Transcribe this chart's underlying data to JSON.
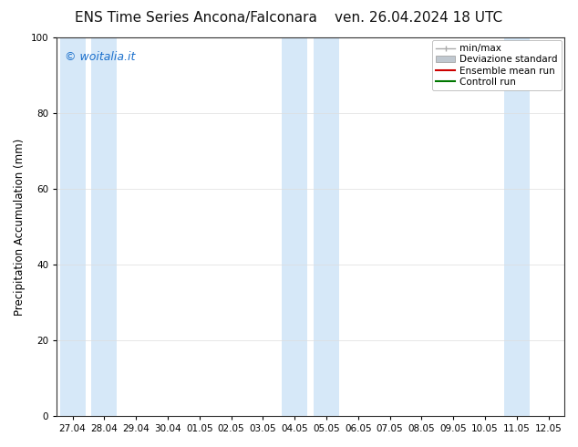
{
  "title_left": "ENS Time Series Ancona/Falconara",
  "title_right": "ven. 26.04.2024 18 UTC",
  "ylabel": "Precipitation Accumulation (mm)",
  "ylim": [
    0,
    100
  ],
  "yticks": [
    0,
    20,
    40,
    60,
    80,
    100
  ],
  "background_color": "#ffffff",
  "plot_bg_color": "#ffffff",
  "watermark": "© woitalia.it",
  "watermark_color": "#1a6fcc",
  "x_tick_labels": [
    "27.04",
    "28.04",
    "29.04",
    "30.04",
    "01.05",
    "02.05",
    "03.05",
    "04.05",
    "05.05",
    "06.05",
    "07.05",
    "08.05",
    "09.05",
    "10.05",
    "11.05",
    "12.05"
  ],
  "shaded_band_color": "#d6e8f8",
  "shaded_col_indices": [
    0,
    1,
    7,
    8,
    14
  ],
  "legend_items": [
    {
      "label": "min/max",
      "color": "#aaaaaa",
      "lw": 1
    },
    {
      "label": "Deviazione standard",
      "color": "#c0c8d0",
      "lw": 4
    },
    {
      "label": "Ensemble mean run",
      "color": "#cc0000",
      "lw": 1.5
    },
    {
      "label": "Controll run",
      "color": "#007700",
      "lw": 1.5
    }
  ],
  "title_fontsize": 11,
  "axis_fontsize": 8.5,
  "tick_fontsize": 7.5,
  "watermark_fontsize": 9,
  "legend_fontsize": 7.5
}
